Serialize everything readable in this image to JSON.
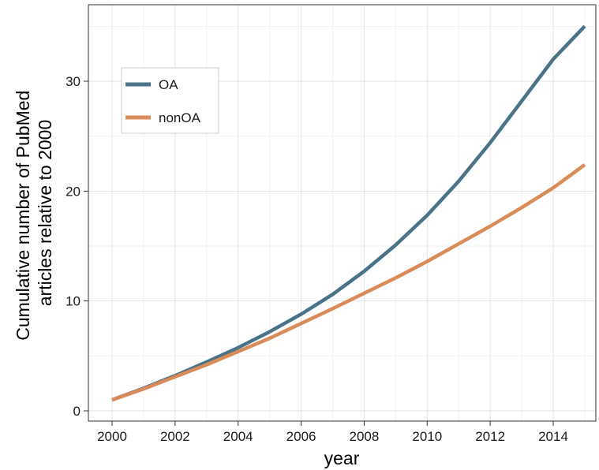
{
  "chart_data": {
    "type": "line",
    "xlabel": "year",
    "ylabel_lines": [
      "Cumulative number of PubMed",
      "articles relative to 2000"
    ],
    "xlim": [
      2000,
      2015
    ],
    "ylim": [
      0,
      35
    ],
    "x_ticks": [
      2000,
      2002,
      2004,
      2006,
      2008,
      2010,
      2012,
      2014
    ],
    "x_tick_labels": [
      "2000",
      "2002",
      "2004",
      "2006",
      "2008",
      "2010",
      "2012",
      "2014"
    ],
    "y_ticks": [
      0,
      10,
      20,
      30
    ],
    "y_tick_labels": [
      "0",
      "10",
      "20",
      "30"
    ],
    "grid": true,
    "legend_position": "top-left",
    "x": [
      2000,
      2001,
      2002,
      2003,
      2004,
      2005,
      2006,
      2007,
      2008,
      2009,
      2010,
      2011,
      2012,
      2013,
      2014,
      2015
    ],
    "series": [
      {
        "name": "OA",
        "color": "#4a7389",
        "values": [
          1.0,
          2.05,
          3.2,
          4.45,
          5.75,
          7.2,
          8.8,
          10.6,
          12.7,
          15.1,
          17.8,
          20.9,
          24.4,
          28.2,
          32.0,
          35.0
        ]
      },
      {
        "name": "nonOA",
        "color": "#d98c5a",
        "values": [
          1.0,
          2.0,
          3.1,
          4.2,
          5.4,
          6.6,
          7.95,
          9.3,
          10.7,
          12.1,
          13.6,
          15.2,
          16.8,
          18.5,
          20.3,
          22.4
        ]
      }
    ]
  }
}
